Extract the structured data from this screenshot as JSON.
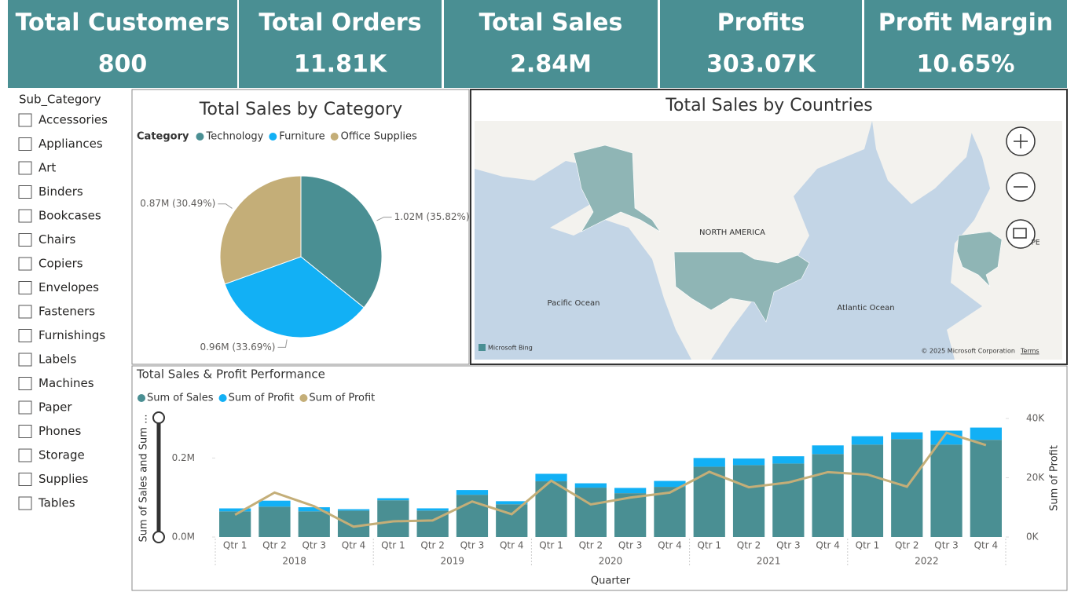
{
  "kpis": [
    {
      "title": "Total Customers",
      "value": "800"
    },
    {
      "title": "Total Orders",
      "value": "11.81K"
    },
    {
      "title": "Total Sales",
      "value": "2.84M"
    },
    {
      "title": "Profits",
      "value": "303.07K"
    },
    {
      "title": "Profit Margin",
      "value": "10.65%"
    }
  ],
  "slicer": {
    "title": "Sub_Category",
    "items": [
      "Accessories",
      "Appliances",
      "Art",
      "Binders",
      "Bookcases",
      "Chairs",
      "Copiers",
      "Envelopes",
      "Fasteners",
      "Furnishings",
      "Labels",
      "Machines",
      "Paper",
      "Phones",
      "Storage",
      "Supplies",
      "Tables"
    ]
  },
  "map": {
    "title": "Total Sales by Countries",
    "continent": "NORTH AMERICA",
    "ocean_pacific": "Pacific Ocean",
    "ocean_atlantic": "Atlantic Ocean",
    "europe_fragment": "PE",
    "provider": "Microsoft Bing",
    "copyright": "© 2025 Microsoft Corporation",
    "terms": "Terms"
  },
  "chart_data": [
    {
      "type": "pie",
      "title": "Total Sales by Category",
      "legend_title": "Category",
      "categories": [
        "Technology",
        "Furniture",
        "Office Supplies"
      ],
      "values": [
        35.82,
        33.69,
        30.49
      ],
      "value_labels": [
        "1.02M (35.82%)",
        "0.96M (33.69%)",
        "0.87M (30.49%)"
      ],
      "colors": [
        "#4a8f93",
        "#12b0f5",
        "#c4ae78"
      ]
    },
    {
      "type": "combo",
      "title": "Total Sales & Profit Performance",
      "categories": [
        "Qtr 1",
        "Qtr 2",
        "Qtr 3",
        "Qtr 4",
        "Qtr 1",
        "Qtr 2",
        "Qtr 3",
        "Qtr 4",
        "Qtr 1",
        "Qtr 2",
        "Qtr 3",
        "Qtr 4",
        "Qtr 1",
        "Qtr 2",
        "Qtr 3",
        "Qtr 4",
        "Qtr 1",
        "Qtr 2",
        "Qtr 3",
        "Qtr 4"
      ],
      "groups": [
        "2018",
        "2019",
        "2020",
        "2021",
        "2022"
      ],
      "x_label": "Quarter",
      "y_label": "Sum of Sales and Sum ...",
      "y2_label": "Sum of Profit",
      "ylim": [
        0,
        0.3
      ],
      "yticks": [
        {
          "value": 0,
          "label": "0.0M"
        },
        {
          "value": 0.2,
          "label": "0.2M"
        }
      ],
      "y2lim": [
        0,
        40
      ],
      "y2ticks": [
        {
          "value": 0,
          "label": "0K"
        },
        {
          "value": 20,
          "label": "20K"
        },
        {
          "value": 40,
          "label": "40K"
        }
      ],
      "series": [
        {
          "name": "Sum of Sales",
          "color": "#4a8f93",
          "values": [
            0.065,
            0.077,
            0.065,
            0.067,
            0.093,
            0.067,
            0.107,
            0.083,
            0.141,
            0.125,
            0.111,
            0.127,
            0.178,
            0.182,
            0.186,
            0.21,
            0.234,
            0.248,
            0.234,
            0.246
          ]
        },
        {
          "name": "Sum of Profit",
          "color": "#12b0f5",
          "values": [
            0.0075,
            0.015,
            0.0104,
            0.0035,
            0.0053,
            0.0056,
            0.012,
            0.0077,
            0.019,
            0.011,
            0.0133,
            0.015,
            0.022,
            0.0168,
            0.0184,
            0.0219,
            0.0211,
            0.017,
            0.0352,
            0.031
          ]
        },
        {
          "name": "Sum of Profit",
          "color": "#c4ae78",
          "axis": "y2",
          "values": [
            7.5,
            15,
            10.4,
            3.5,
            5.3,
            5.6,
            12,
            7.7,
            19,
            11,
            13.3,
            15,
            22,
            16.8,
            18.4,
            21.9,
            21.1,
            17,
            35.2,
            31
          ]
        }
      ]
    }
  ]
}
